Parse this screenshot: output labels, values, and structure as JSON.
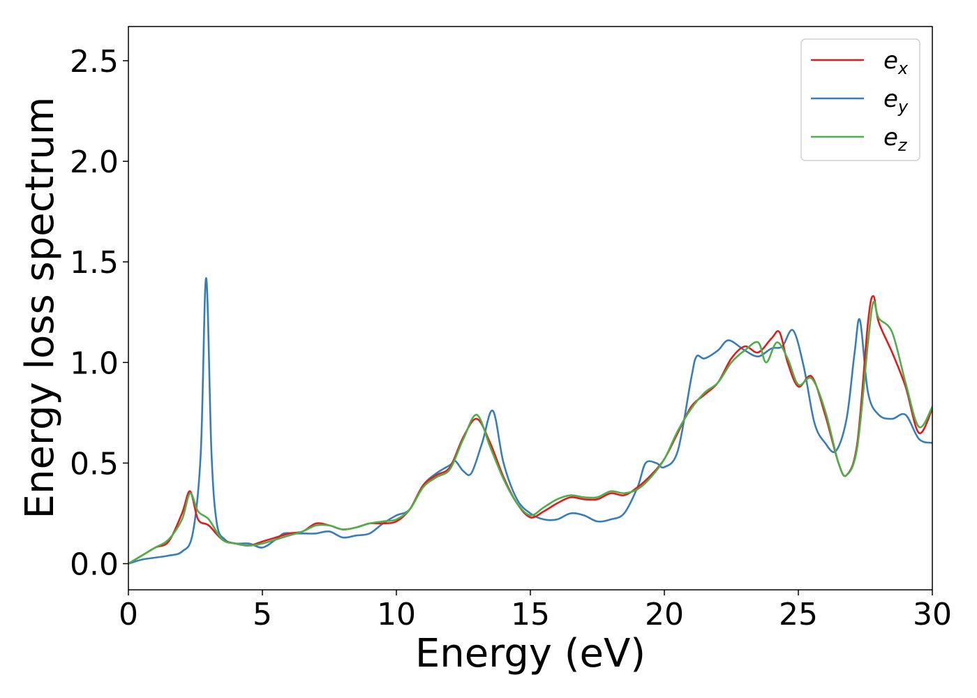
{
  "chart_data": {
    "type": "line",
    "xlabel": "Energy (eV)",
    "ylabel": "Energy loss spectrum",
    "xlim": [
      0,
      30
    ],
    "ylim": [
      -0.13,
      2.67
    ],
    "xticks": [
      "0",
      "5",
      "10",
      "15",
      "20",
      "25",
      "30"
    ],
    "yticks": [
      "0.0",
      "0.5",
      "1.0",
      "1.5",
      "2.0",
      "2.5"
    ],
    "grid": false,
    "legend_position": "top-right",
    "series": [
      {
        "name": "e_x",
        "legend": {
          "base": "e",
          "sub": "x"
        },
        "color": "#e41a1c",
        "x": [
          0,
          0.5,
          1,
          1.5,
          2,
          2.3,
          2.6,
          3,
          3.5,
          4,
          4.5,
          5,
          5.5,
          6,
          6.5,
          7,
          7.5,
          8,
          8.5,
          9,
          9.5,
          10,
          10.5,
          11,
          11.5,
          12,
          12.5,
          13,
          13.5,
          14,
          14.5,
          15,
          15.5,
          16,
          16.5,
          17,
          17.5,
          18,
          18.5,
          19,
          19.5,
          20,
          20.5,
          21,
          21.5,
          22,
          22.5,
          23,
          23.5,
          24,
          24.3,
          24.6,
          25,
          25.5,
          26,
          26.5,
          26.8,
          27.2,
          27.6,
          27.8,
          28,
          28.5,
          29,
          29.5,
          30
        ],
        "values": [
          0.0,
          0.04,
          0.08,
          0.11,
          0.25,
          0.36,
          0.22,
          0.19,
          0.12,
          0.1,
          0.09,
          0.11,
          0.13,
          0.15,
          0.16,
          0.2,
          0.19,
          0.17,
          0.18,
          0.2,
          0.2,
          0.21,
          0.27,
          0.39,
          0.44,
          0.48,
          0.63,
          0.72,
          0.6,
          0.43,
          0.3,
          0.23,
          0.26,
          0.3,
          0.33,
          0.32,
          0.32,
          0.35,
          0.34,
          0.38,
          0.44,
          0.52,
          0.65,
          0.78,
          0.84,
          0.9,
          1.02,
          1.08,
          1.05,
          1.12,
          1.15,
          1.0,
          0.88,
          0.93,
          0.74,
          0.5,
          0.44,
          0.6,
          1.2,
          1.33,
          1.2,
          1.05,
          0.88,
          0.65,
          0.77
        ]
      },
      {
        "name": "e_y",
        "legend": {
          "base": "e",
          "sub": "y"
        },
        "color": "#377eb8",
        "x": [
          0,
          0.5,
          1,
          1.5,
          2,
          2.4,
          2.7,
          2.9,
          3.1,
          3.3,
          3.6,
          4,
          4.5,
          5,
          5.5,
          5.8,
          6.2,
          6.6,
          7,
          7.5,
          8,
          8.5,
          9,
          9.5,
          10,
          10.5,
          11,
          11.5,
          12,
          12.2,
          12.5,
          12.8,
          13.2,
          13.6,
          14,
          14.5,
          15,
          15.5,
          16,
          16.5,
          17,
          17.5,
          18,
          18.5,
          19,
          19.3,
          19.7,
          20,
          20.5,
          21,
          21.2,
          21.5,
          22,
          22.4,
          23,
          23.5,
          24,
          24.4,
          24.8,
          25.2,
          25.6,
          26,
          26.4,
          26.8,
          27.1,
          27.3,
          27.6,
          28,
          28.5,
          29,
          29.5,
          30
        ],
        "values": [
          0.0,
          0.02,
          0.03,
          0.04,
          0.06,
          0.15,
          0.55,
          1.42,
          0.55,
          0.2,
          0.12,
          0.1,
          0.1,
          0.08,
          0.12,
          0.15,
          0.15,
          0.15,
          0.15,
          0.16,
          0.13,
          0.14,
          0.15,
          0.2,
          0.24,
          0.27,
          0.39,
          0.45,
          0.49,
          0.51,
          0.46,
          0.45,
          0.6,
          0.76,
          0.5,
          0.32,
          0.25,
          0.22,
          0.22,
          0.25,
          0.24,
          0.21,
          0.22,
          0.25,
          0.38,
          0.5,
          0.5,
          0.48,
          0.56,
          0.92,
          1.03,
          1.02,
          1.06,
          1.11,
          1.06,
          1.03,
          1.07,
          1.08,
          1.16,
          0.98,
          0.7,
          0.6,
          0.56,
          0.72,
          1.05,
          1.21,
          0.85,
          0.74,
          0.72,
          0.74,
          0.62,
          0.6
        ]
      },
      {
        "name": "e_z",
        "legend": {
          "base": "e",
          "sub": "z"
        },
        "color": "#4daf4a",
        "x": [
          0,
          0.5,
          1,
          1.5,
          2,
          2.3,
          2.6,
          3,
          3.5,
          4,
          4.5,
          5,
          5.5,
          6,
          6.5,
          7,
          7.5,
          8,
          8.5,
          9,
          9.5,
          10,
          10.5,
          11,
          11.5,
          12,
          12.5,
          13,
          13.5,
          14,
          14.5,
          15,
          15.5,
          16,
          16.5,
          17,
          17.5,
          18,
          18.5,
          19,
          19.5,
          20,
          20.5,
          21,
          21.5,
          22,
          22.5,
          23,
          23.5,
          23.8,
          24.2,
          24.6,
          25,
          25.5,
          26,
          26.5,
          26.8,
          27.2,
          27.6,
          27.8,
          28,
          28.5,
          29,
          29.5,
          30
        ],
        "values": [
          0.0,
          0.04,
          0.08,
          0.12,
          0.22,
          0.35,
          0.26,
          0.22,
          0.12,
          0.1,
          0.09,
          0.1,
          0.12,
          0.14,
          0.16,
          0.19,
          0.19,
          0.17,
          0.18,
          0.2,
          0.21,
          0.22,
          0.27,
          0.38,
          0.43,
          0.47,
          0.62,
          0.74,
          0.58,
          0.42,
          0.3,
          0.24,
          0.28,
          0.32,
          0.34,
          0.33,
          0.33,
          0.36,
          0.35,
          0.37,
          0.43,
          0.52,
          0.66,
          0.77,
          0.85,
          0.9,
          1.0,
          1.06,
          1.1,
          1.0,
          1.1,
          1.02,
          0.89,
          0.92,
          0.76,
          0.5,
          0.44,
          0.58,
          1.1,
          1.3,
          1.22,
          1.15,
          0.9,
          0.68,
          0.78
        ]
      }
    ]
  }
}
